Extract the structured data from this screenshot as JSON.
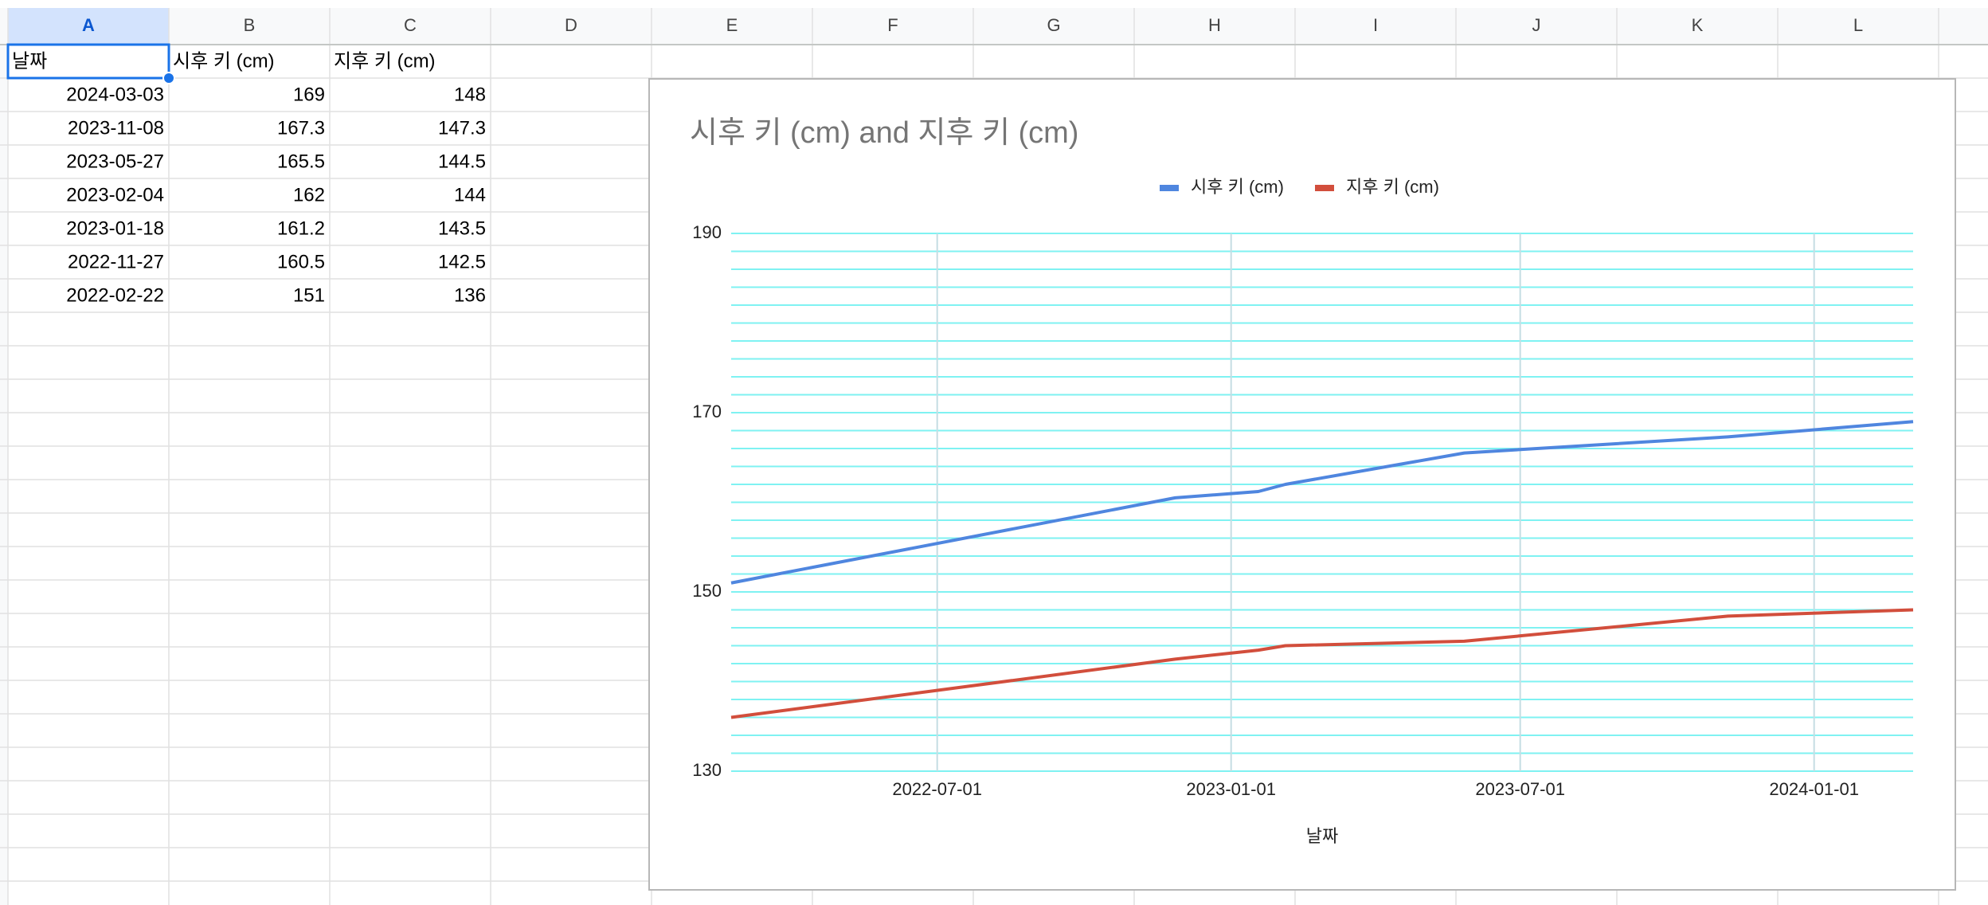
{
  "columns": [
    "A",
    "B",
    "C",
    "D",
    "E",
    "F",
    "G",
    "H",
    "I",
    "J",
    "K",
    "L"
  ],
  "selected_cell": "A1",
  "table": {
    "rows": [
      [
        "날짜",
        "시후 키 (cm)",
        "지후 키 (cm)"
      ],
      [
        "2024-03-03",
        169,
        148
      ],
      [
        "2023-11-08",
        167.3,
        147.3
      ],
      [
        "2023-05-27",
        165.5,
        144.5
      ],
      [
        "2023-02-04",
        162,
        144
      ],
      [
        "2023-01-18",
        161.2,
        143.5
      ],
      [
        "2022-11-27",
        160.5,
        142.5
      ],
      [
        "2022-02-22",
        151,
        136
      ]
    ]
  },
  "chart_data": {
    "type": "line",
    "title": "시후 키 (cm) and 지후 키 (cm)",
    "x_label": "날짜",
    "x": [
      "2024-03-03",
      "2023-11-08",
      "2023-05-27",
      "2023-02-04",
      "2023-01-18",
      "2022-11-27",
      "2022-02-22"
    ],
    "series": [
      {
        "name": "시후 키 (cm)",
        "color": "#4f86df",
        "values": [
          169,
          167.3,
          165.5,
          162,
          161.2,
          160.5,
          151
        ]
      },
      {
        "name": "지후 키 (cm)",
        "color": "#d24e3c",
        "values": [
          148,
          147.3,
          144.5,
          144,
          143.5,
          142.5,
          136
        ]
      }
    ],
    "xlim": [
      "2022-02-22",
      "2024-03-03"
    ],
    "xticks": [
      "2022-07-01",
      "2023-01-01",
      "2023-07-01",
      "2024-01-01"
    ],
    "ylim": [
      130,
      190
    ],
    "yticks": [
      130,
      150,
      170,
      190
    ],
    "grid": true,
    "minor_grid_step": 2,
    "grid_color": "#7ff2f2",
    "legend": "top"
  }
}
